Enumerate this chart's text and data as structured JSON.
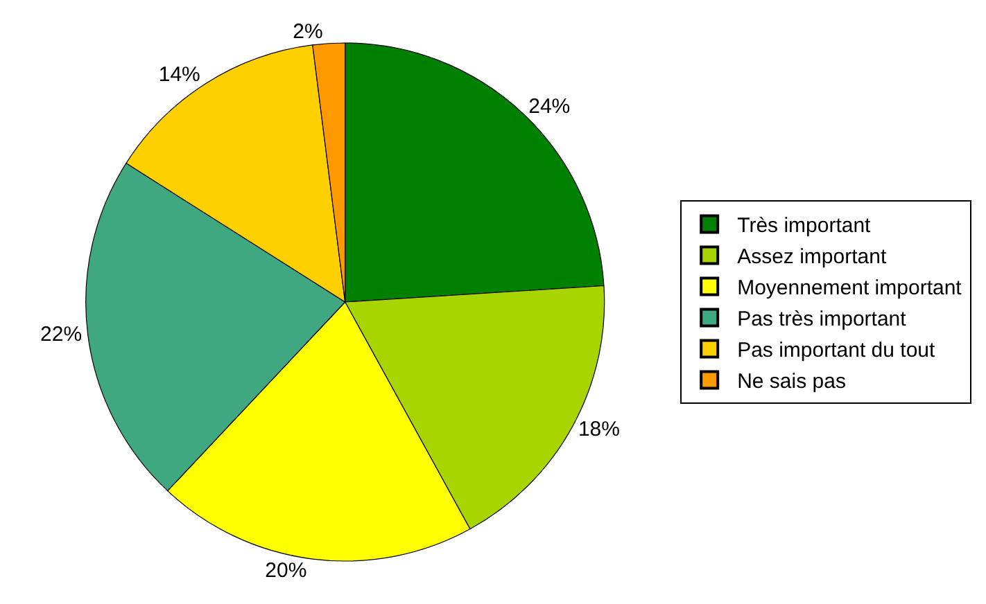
{
  "chart_data": {
    "type": "pie",
    "categories": [
      "Très important",
      "Assez important",
      "Moyennement important",
      "Pas très important",
      "Pas important du tout",
      "Ne sais pas"
    ],
    "values": [
      24,
      18,
      20,
      22,
      14,
      2
    ],
    "value_labels": [
      "24%",
      "18%",
      "20%",
      "22%",
      "14%",
      "2%"
    ],
    "colors": [
      "#008000",
      "#a8d400",
      "#ffff00",
      "#40a880",
      "#ffd000",
      "#ff9900"
    ],
    "legend": "right"
  }
}
